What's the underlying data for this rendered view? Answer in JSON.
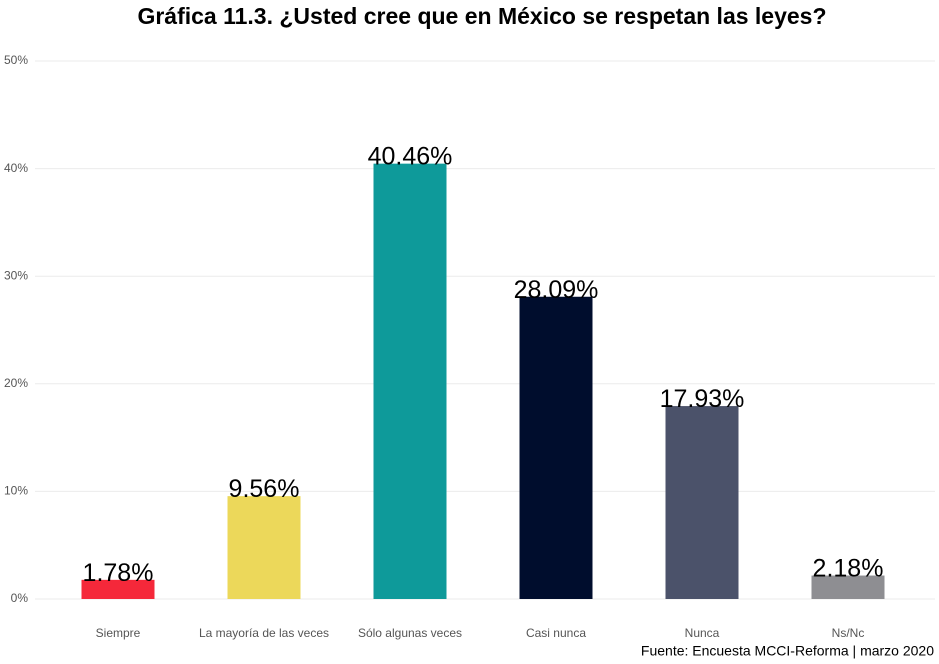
{
  "chart_data": {
    "type": "bar",
    "title": "Gráfica 11.3. ¿Usted cree que en México se respetan las leyes?",
    "caption": "Fuente: Encuesta MCCI-Reforma | marzo 2020",
    "categories": [
      "Siempre",
      "La mayoría de las veces",
      "Sólo algunas veces",
      "Casi nunca",
      "Nunca",
      "Ns/Nc"
    ],
    "values": [
      1.78,
      9.56,
      40.46,
      28.09,
      17.93,
      2.18
    ],
    "value_labels": [
      "1.78%",
      "9.56%",
      "40.46%",
      "28.09%",
      "17.93%",
      "2.18%"
    ],
    "colors": [
      "#f5283a",
      "#ecd85a",
      "#0e9a9a",
      "#000d2d",
      "#4b526a",
      "#8e8e92"
    ],
    "ylim": [
      0,
      50
    ],
    "yticks": [
      {
        "value": 0,
        "label": "0%"
      },
      {
        "value": 10,
        "label": "10%"
      },
      {
        "value": 20,
        "label": "20%"
      },
      {
        "value": 30,
        "label": "30%"
      },
      {
        "value": 40,
        "label": "40%"
      },
      {
        "value": 50,
        "label": "50%"
      }
    ],
    "grid": true
  }
}
